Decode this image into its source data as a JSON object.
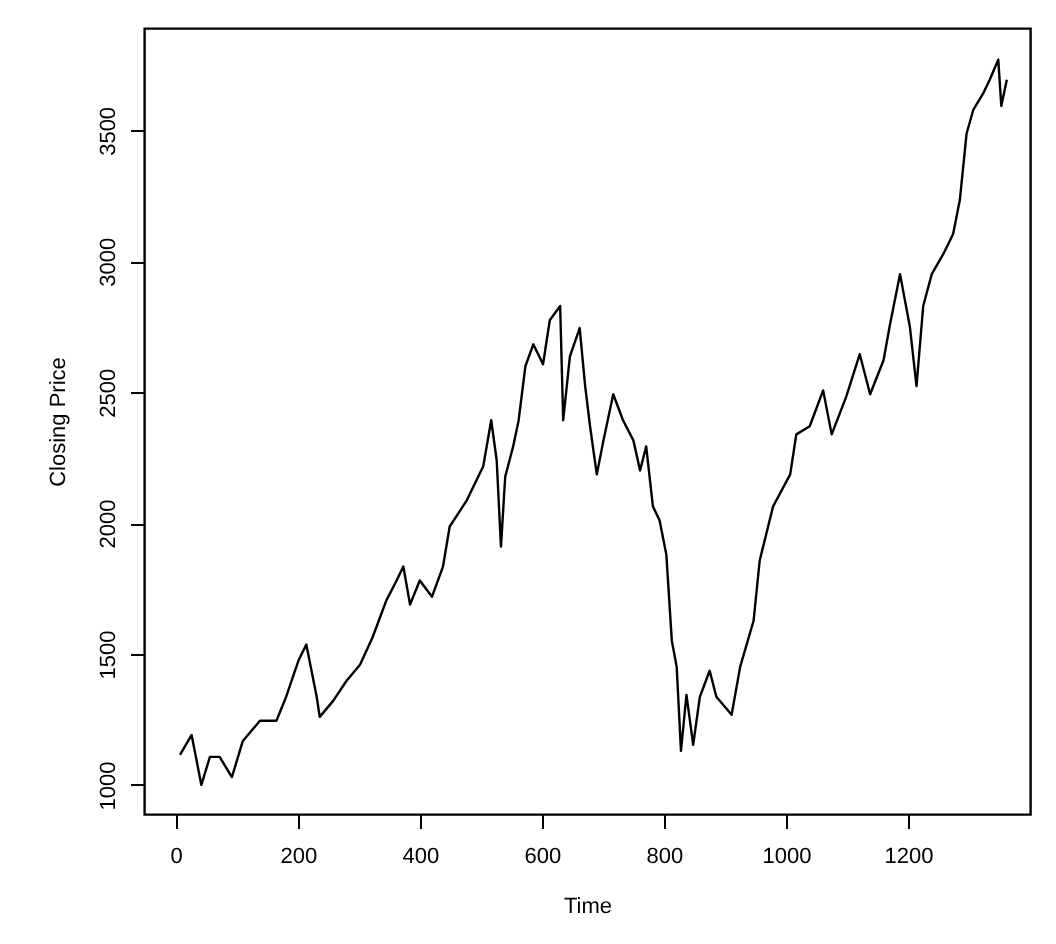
{
  "chart_data": {
    "type": "line",
    "xlabel": "Time",
    "ylabel": "Closing Price",
    "xlim": [
      -52,
      1400
    ],
    "xticks": [
      0,
      200,
      400,
      600,
      800,
      1000,
      1200
    ],
    "ylim": [
      889,
      3891
    ],
    "yticks": [
      1000,
      1500,
      2000,
      2500,
      3000,
      3500
    ],
    "grid": false,
    "line_style": "solid",
    "x": [
      7,
      26,
      42,
      56,
      72,
      92,
      110,
      138,
      165,
      181,
      201,
      214,
      231,
      236,
      258,
      280,
      302,
      323,
      345,
      362,
      373,
      384,
      400,
      420,
      438,
      449,
      477,
      504,
      517,
      526,
      533,
      540,
      553,
      562,
      573,
      586,
      602,
      613,
      630,
      635,
      646,
      662,
      671,
      679,
      690,
      701,
      717,
      733,
      750,
      761,
      771,
      782,
      793,
      804,
      813,
      821,
      828,
      837,
      848,
      859,
      875,
      886,
      911,
      925,
      947,
      957,
      979,
      1007,
      1017,
      1039,
      1061,
      1075,
      1099,
      1121,
      1138,
      1160,
      1170,
      1187,
      1203,
      1214,
      1225,
      1239,
      1258,
      1274,
      1285,
      1296,
      1307,
      1323,
      1334,
      1348,
      1353,
      1362
    ],
    "series": [
      {
        "color": "#000000",
        "values": [
          1115,
          1191,
          1000,
          1107,
          1107,
          1030,
          1168,
          1245,
          1245,
          1337,
          1474,
          1536,
          1337,
          1260,
          1321,
          1398,
          1459,
          1566,
          1704,
          1781,
          1834,
          1689,
          1781,
          1719,
          1834,
          1987,
          2087,
          2217,
          2393,
          2240,
          1910,
          2178,
          2293,
          2393,
          2599,
          2683,
          2607,
          2775,
          2829,
          2393,
          2637,
          2745,
          2523,
          2370,
          2186,
          2316,
          2492,
          2393,
          2316,
          2201,
          2293,
          2064,
          2010,
          1880,
          1551,
          1451,
          1130,
          1344,
          1153,
          1337,
          1436,
          1337,
          1268,
          1451,
          1627,
          1857,
          2064,
          2186,
          2339,
          2370,
          2507,
          2339,
          2484,
          2645,
          2492,
          2622,
          2752,
          2951,
          2752,
          2523,
          2829,
          2951,
          3028,
          3104,
          3234,
          3487,
          3578,
          3640,
          3693,
          3770,
          3593,
          3693
        ]
      }
    ]
  }
}
